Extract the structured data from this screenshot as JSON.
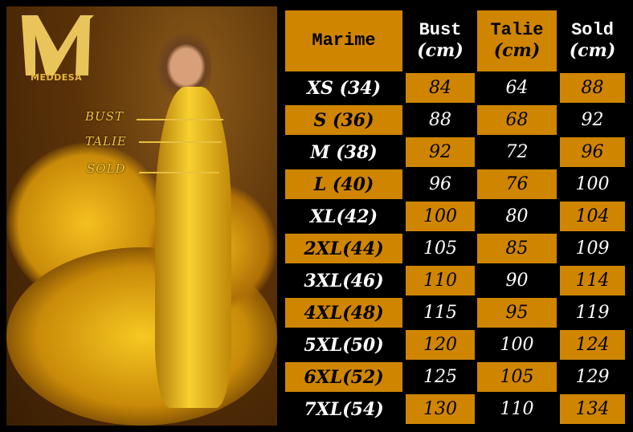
{
  "brand": {
    "logo_text": "MEDDESA"
  },
  "measure_labels": [
    "BUST",
    "TALIE",
    "SOLD"
  ],
  "colors": {
    "accent": "#cf8500",
    "background": "#000000",
    "text_light": "#ffffff",
    "text_dark": "#000000"
  },
  "table": {
    "headers": [
      {
        "label": "Marime",
        "unit": ""
      },
      {
        "label": "Bust",
        "unit": "(cm)"
      },
      {
        "label": "Talie",
        "unit": "(cm)"
      },
      {
        "label": "Sold",
        "unit": "(cm)"
      }
    ],
    "rows": [
      {
        "size": "XS (34)",
        "bust": "84",
        "talie": "64",
        "sold": "88"
      },
      {
        "size": "S  (36)",
        "bust": "88",
        "talie": "68",
        "sold": "92"
      },
      {
        "size": "M  (38)",
        "bust": "92",
        "talie": "72",
        "sold": "96"
      },
      {
        "size": "L (40)",
        "bust": "96",
        "talie": "76",
        "sold": "100"
      },
      {
        "size": "XL(42)",
        "bust": "100",
        "talie": "80",
        "sold": "104"
      },
      {
        "size": "2XL(44)",
        "bust": "105",
        "talie": "85",
        "sold": "109"
      },
      {
        "size": "3XL(46)",
        "bust": "110",
        "talie": "90",
        "sold": "114"
      },
      {
        "size": "4XL(48)",
        "bust": "115",
        "talie": "95",
        "sold": "119"
      },
      {
        "size": "5XL(50)",
        "bust": "120",
        "talie": "100",
        "sold": "124"
      },
      {
        "size": "6XL(52)",
        "bust": "125",
        "talie": "105",
        "sold": "129"
      },
      {
        "size": "7XL(54)",
        "bust": "130",
        "talie": "110",
        "sold": "134"
      }
    ]
  }
}
